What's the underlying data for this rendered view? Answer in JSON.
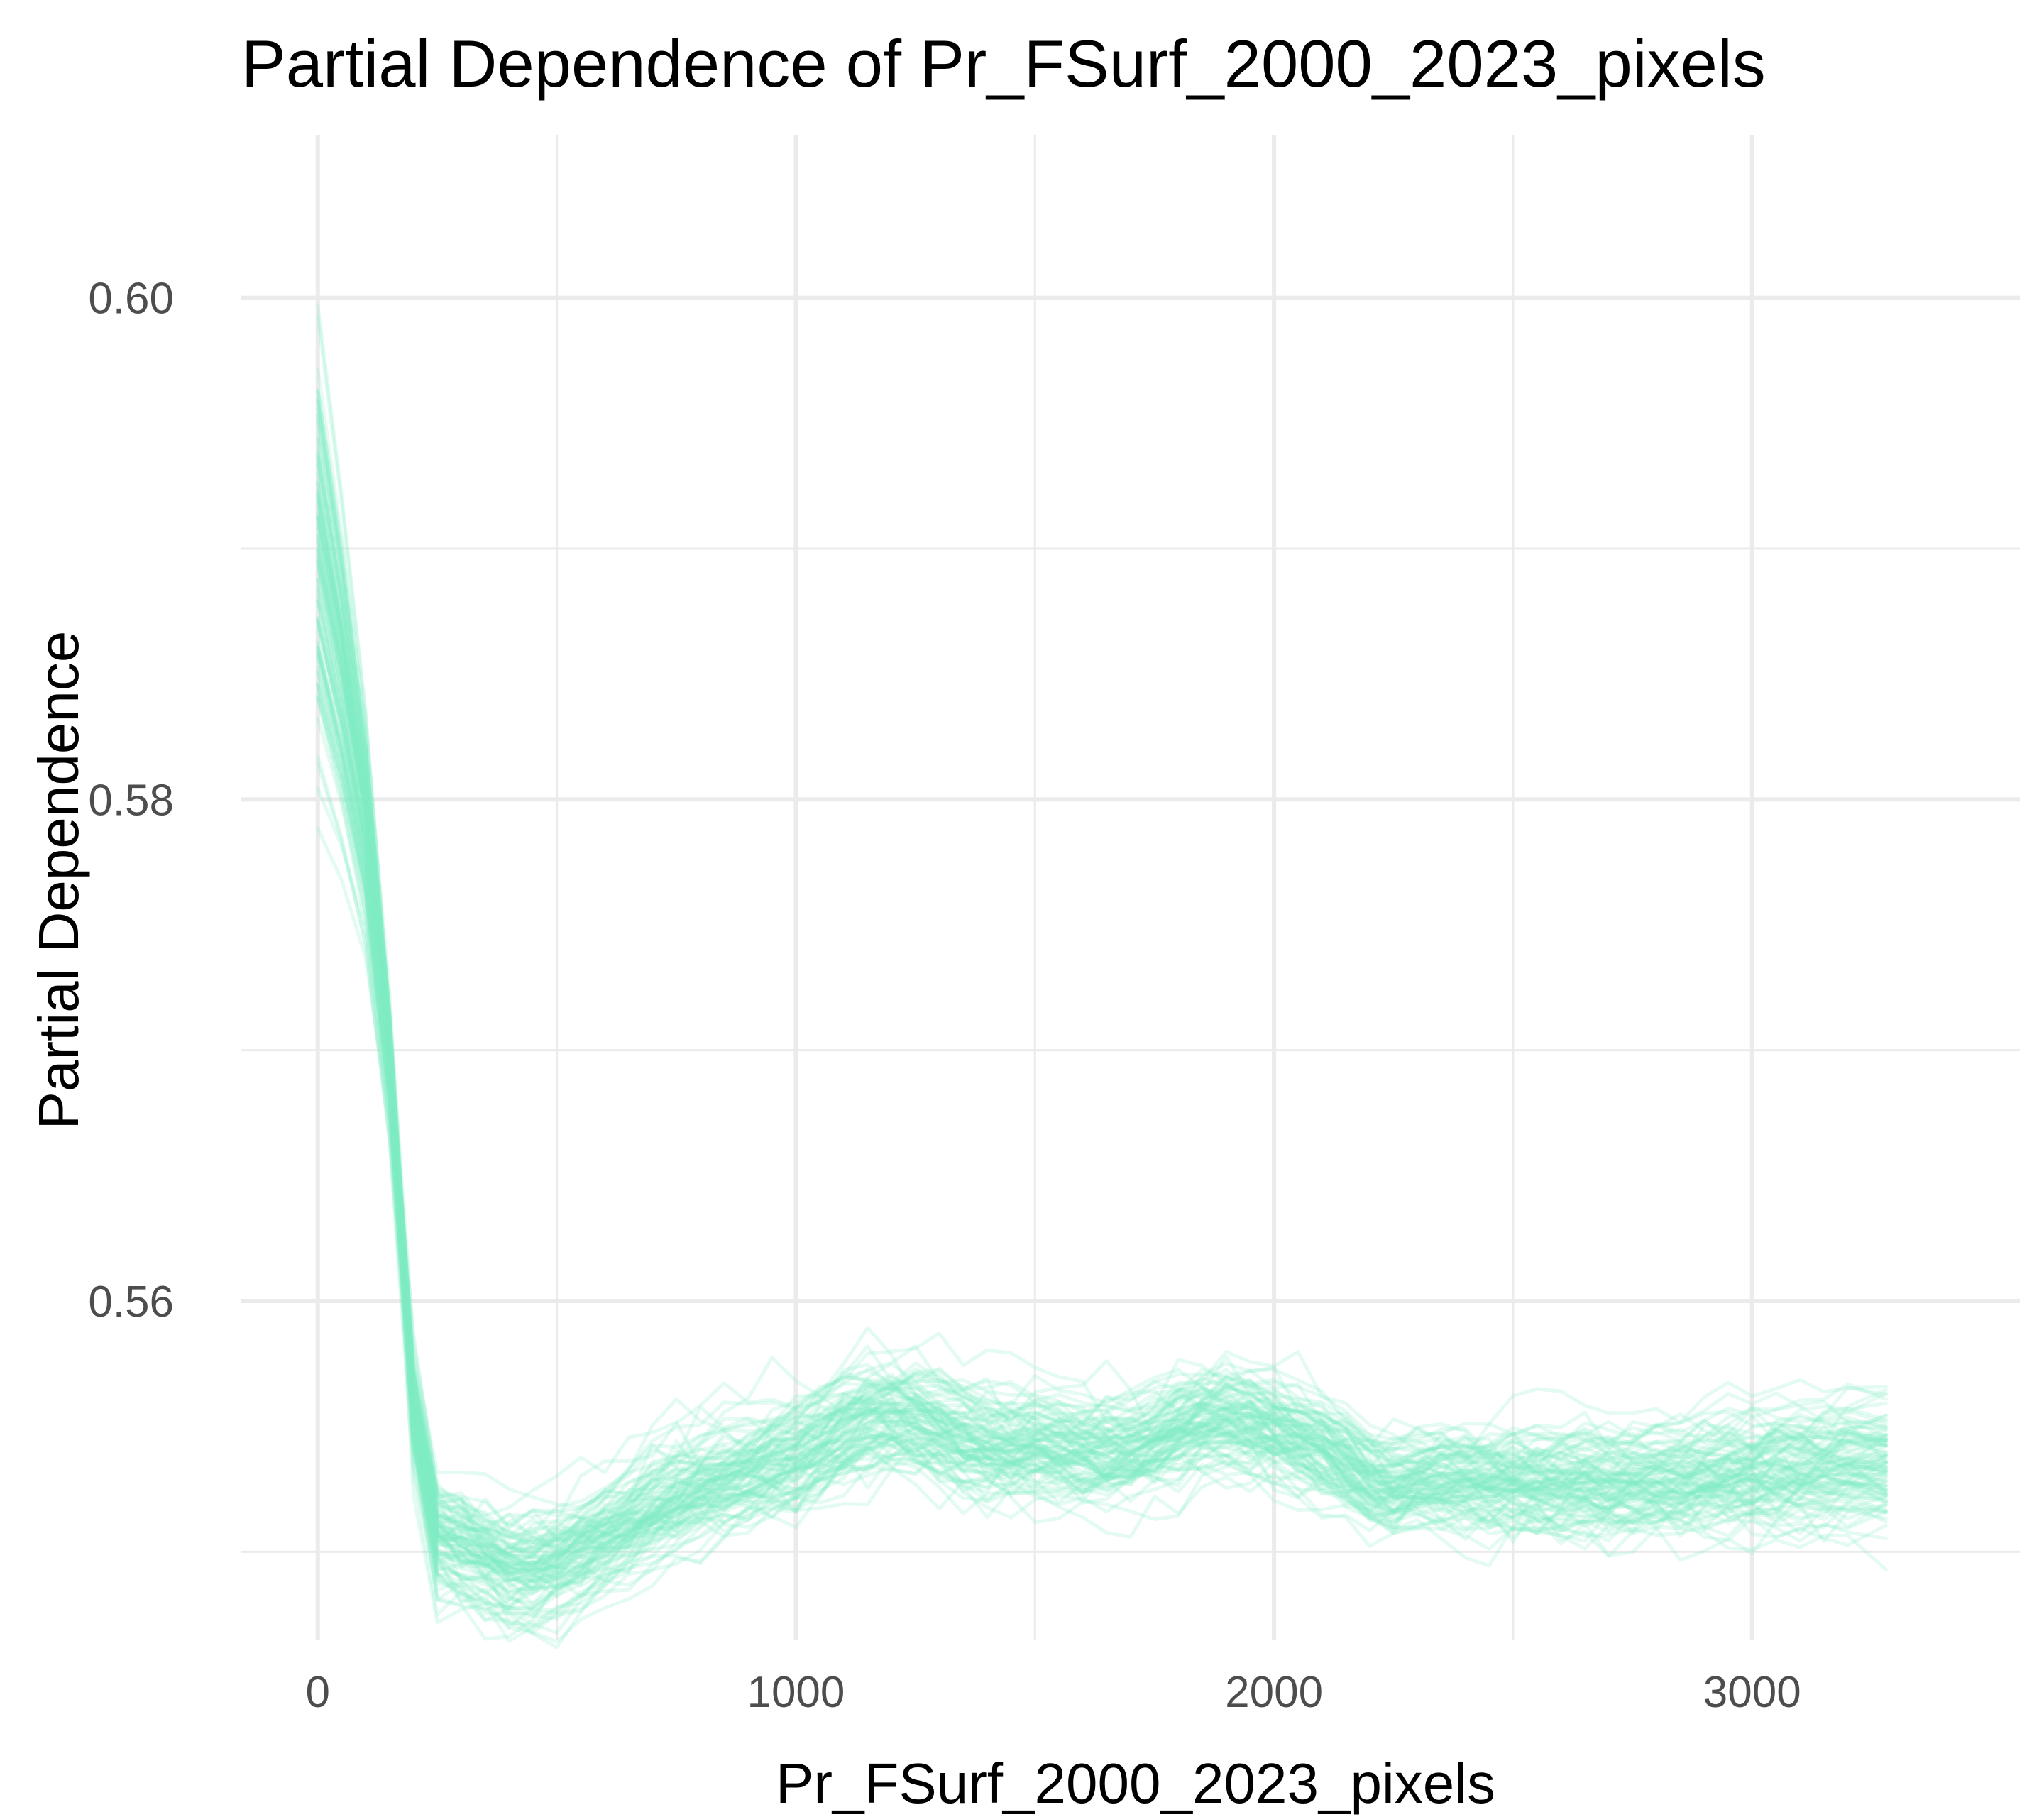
{
  "chart_data": {
    "type": "line",
    "title": "Partial Dependence of Pr_FSurf_2000_2023_pixels",
    "xlabel": "Pr_FSurf_2000_2023_pixels",
    "ylabel": "Partial Dependence",
    "xlim": [
      -160,
      3560
    ],
    "ylim": [
      0.5465,
      0.6065
    ],
    "x_ticks": [
      0,
      1000,
      2000,
      3000
    ],
    "x_tick_labels": [
      "0",
      "1000",
      "2000",
      "3000"
    ],
    "x_minor_ticks": [
      500,
      1500,
      2500
    ],
    "y_ticks": [
      0.56,
      0.58,
      0.6
    ],
    "y_tick_labels": [
      "0.56",
      "0.58",
      "0.60"
    ],
    "y_minor_ticks": [
      0.55,
      0.57,
      0.59
    ],
    "grid": true,
    "legend": "none",
    "line_color": "#7eeec6",
    "line_alpha": 0.22,
    "num_lines": 100,
    "x": [
      0,
      50,
      100,
      150,
      200,
      250,
      300,
      350,
      400,
      450,
      500,
      550,
      600,
      650,
      700,
      750,
      800,
      850,
      900,
      950,
      1000,
      1050,
      1100,
      1150,
      1200,
      1250,
      1300,
      1350,
      1400,
      1450,
      1500,
      1550,
      1600,
      1650,
      1700,
      1750,
      1800,
      1850,
      1900,
      1950,
      2000,
      2050,
      2100,
      2150,
      2200,
      2250,
      2300,
      2350,
      2400,
      2450,
      2500,
      2550,
      2600,
      2650,
      2700,
      2750,
      2800,
      2850,
      2900,
      2950,
      3000,
      3050,
      3100,
      3150,
      3200,
      3280
    ],
    "mean_curve": [
      0.5905,
      0.5855,
      0.5795,
      0.57,
      0.556,
      0.5508,
      0.5505,
      0.55,
      0.5495,
      0.5495,
      0.5498,
      0.5503,
      0.5508,
      0.5513,
      0.5518,
      0.5523,
      0.5527,
      0.5531,
      0.5534,
      0.5537,
      0.554,
      0.5545,
      0.555,
      0.5554,
      0.5556,
      0.5555,
      0.5551,
      0.5548,
      0.5546,
      0.5545,
      0.5545,
      0.5544,
      0.5543,
      0.5543,
      0.5544,
      0.5547,
      0.5551,
      0.5554,
      0.5556,
      0.5554,
      0.5551,
      0.5547,
      0.5543,
      0.5538,
      0.5531,
      0.5528,
      0.553,
      0.5531,
      0.553,
      0.5529,
      0.5529,
      0.5528,
      0.5528,
      0.5528,
      0.5527,
      0.5527,
      0.5528,
      0.5529,
      0.553,
      0.5531,
      0.5532,
      0.5533,
      0.5534,
      0.5534,
      0.5535,
      0.5535
    ],
    "ice_spread": {
      "at_x_0": [
        0.578,
        0.605
      ],
      "at_x_250": [
        0.5472,
        0.5518
      ],
      "at_x_1200": [
        0.552,
        0.5582
      ],
      "at_x_1950": [
        0.552,
        0.5592
      ],
      "at_x_3280": [
        0.5485,
        0.5583
      ]
    }
  }
}
